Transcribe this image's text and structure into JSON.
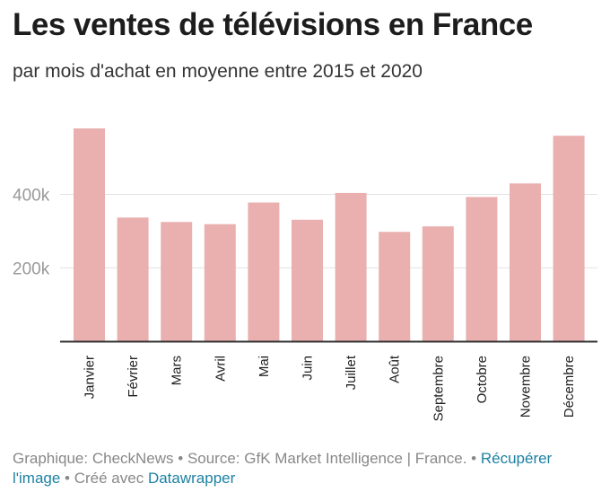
{
  "title": "Les ventes de télévisions en France",
  "subtitle": "par mois d'achat en moyenne entre 2015 et 2020",
  "footer": {
    "credit": "Graphique: CheckNews",
    "sep1": " • ",
    "source": "Source: GfK Market Intelligence | France.",
    "sep2": " • ",
    "get_image": "Récupérer l'image",
    "sep3": " • ",
    "made_with": "Créé avec ",
    "datawrapper": "Datawrapper"
  },
  "colors": {
    "bar": "#eab0b0",
    "grid": "#e2e2e2",
    "axis": "#333333",
    "tick_text": "#999999",
    "link": "#1d81a2"
  },
  "chart_data": {
    "type": "bar",
    "title": "Les ventes de télévisions en France",
    "subtitle": "par mois d'achat en moyenne entre 2015 et 2020",
    "xlabel": "",
    "ylabel": "",
    "categories": [
      "Janvier",
      "Février",
      "Mars",
      "Avril",
      "Mai",
      "Juin",
      "Juillet",
      "Août",
      "Septembre",
      "Octobre",
      "Novembre",
      "Décembre"
    ],
    "values": [
      580000,
      337000,
      325000,
      319000,
      378000,
      331000,
      404000,
      298000,
      313000,
      393000,
      430000,
      560000
    ],
    "ylim": [
      0,
      580000
    ],
    "yticks": [
      {
        "value": 200000,
        "label": "200k"
      },
      {
        "value": 400000,
        "label": "400k"
      }
    ],
    "grid": true,
    "legend": "none"
  }
}
